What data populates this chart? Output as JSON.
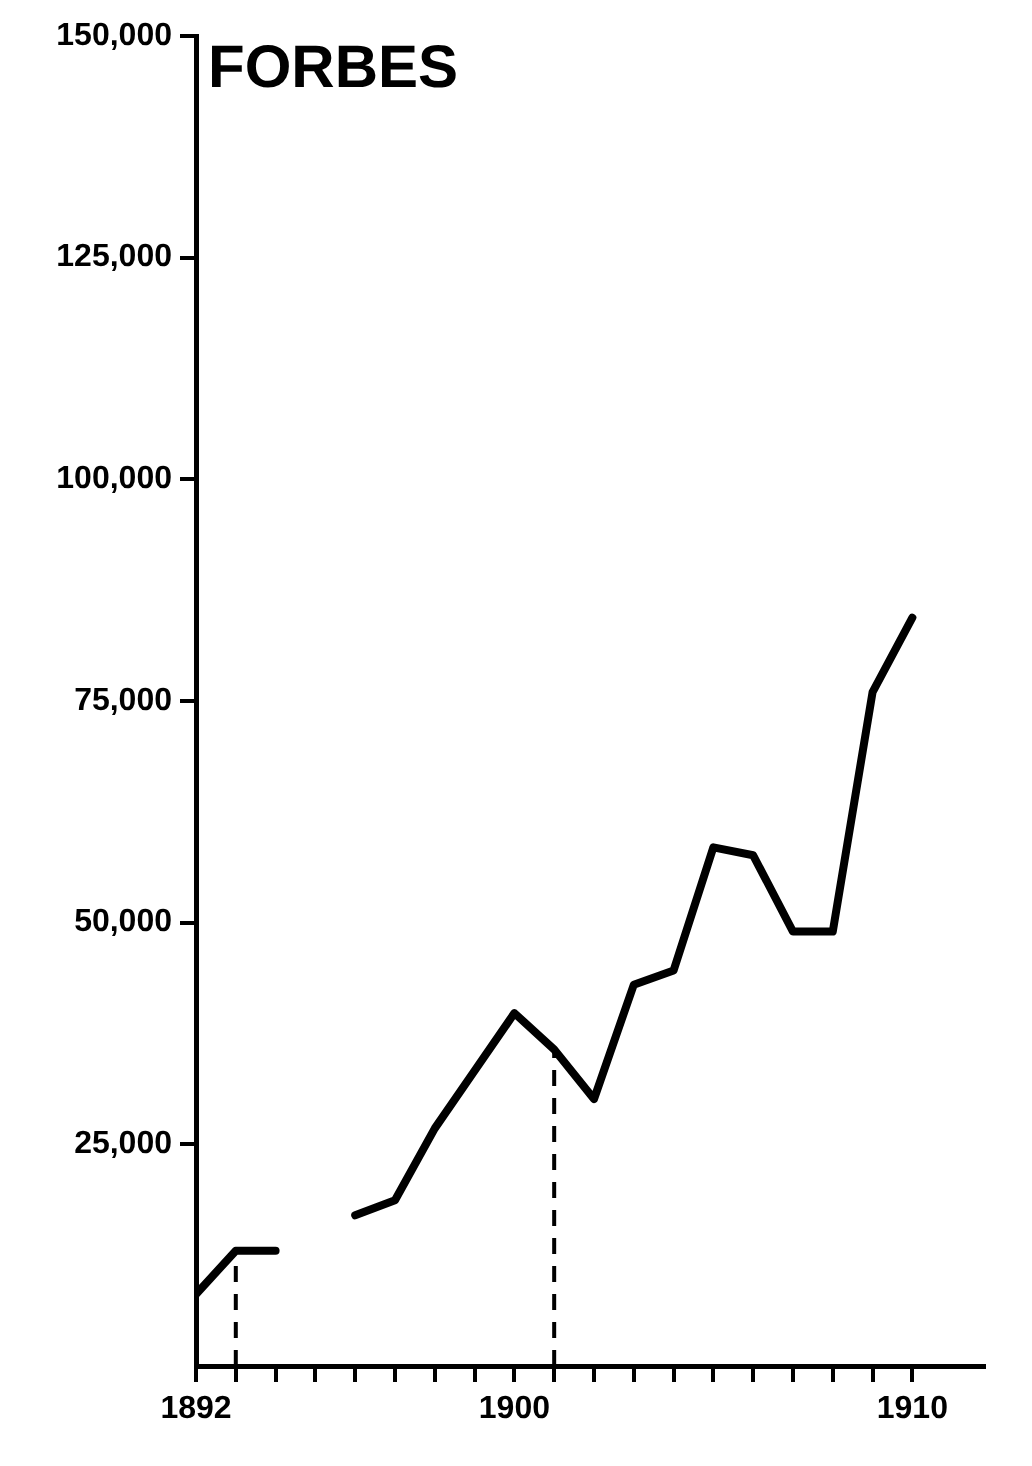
{
  "chart_data": {
    "type": "line",
    "title": "FORBES",
    "x": [
      1892,
      1893,
      1894,
      1895,
      1896,
      1897,
      1898,
      1899,
      1900,
      1901,
      1902,
      1903,
      1904,
      1905,
      1906,
      1907,
      1908,
      1909,
      1910
    ],
    "series": [
      {
        "color": "#000000",
        "values": [
          8100,
          13000,
          13000,
          null,
          17000,
          18700,
          26800,
          33300,
          39800,
          35700,
          30100,
          43000,
          44600,
          58500,
          57600,
          49000,
          49000,
          76000,
          84400
        ]
      }
    ],
    "xlim": [
      1892,
      1911.8
    ],
    "xticks": [
      {
        "value": 1892,
        "label": "1892"
      },
      {
        "value": 1893,
        "label": null
      },
      {
        "value": 1894,
        "label": null
      },
      {
        "value": 1895,
        "label": null
      },
      {
        "value": 1896,
        "label": null
      },
      {
        "value": 1897,
        "label": null
      },
      {
        "value": 1898,
        "label": null
      },
      {
        "value": 1899,
        "label": null
      },
      {
        "value": 1900,
        "label": "1900"
      },
      {
        "value": 1901,
        "label": null
      },
      {
        "value": 1902,
        "label": null
      },
      {
        "value": 1903,
        "label": null
      },
      {
        "value": 1904,
        "label": null
      },
      {
        "value": 1905,
        "label": null
      },
      {
        "value": 1906,
        "label": null
      },
      {
        "value": 1907,
        "label": null
      },
      {
        "value": 1908,
        "label": null
      },
      {
        "value": 1909,
        "label": null
      },
      {
        "value": 1910,
        "label": "1910"
      }
    ],
    "ylim": [
      0,
      150000
    ],
    "yticks": [
      {
        "value": 25000,
        "label": "25,000"
      },
      {
        "value": 50000,
        "label": "50,000"
      },
      {
        "value": 75000,
        "label": "75,000"
      },
      {
        "value": 100000,
        "label": "100,000"
      },
      {
        "value": 125000,
        "label": "125,000"
      },
      {
        "value": 150000,
        "label": "150,000"
      }
    ],
    "ref_lines": [
      {
        "axis": "x",
        "value": 1893,
        "color": "#000000",
        "line_style": "dashed"
      },
      {
        "axis": "x",
        "value": 1901,
        "color": "#000000",
        "line_style": "dashed"
      }
    ],
    "grid": false,
    "legend": false,
    "marker": "none",
    "line_style": "solid"
  }
}
